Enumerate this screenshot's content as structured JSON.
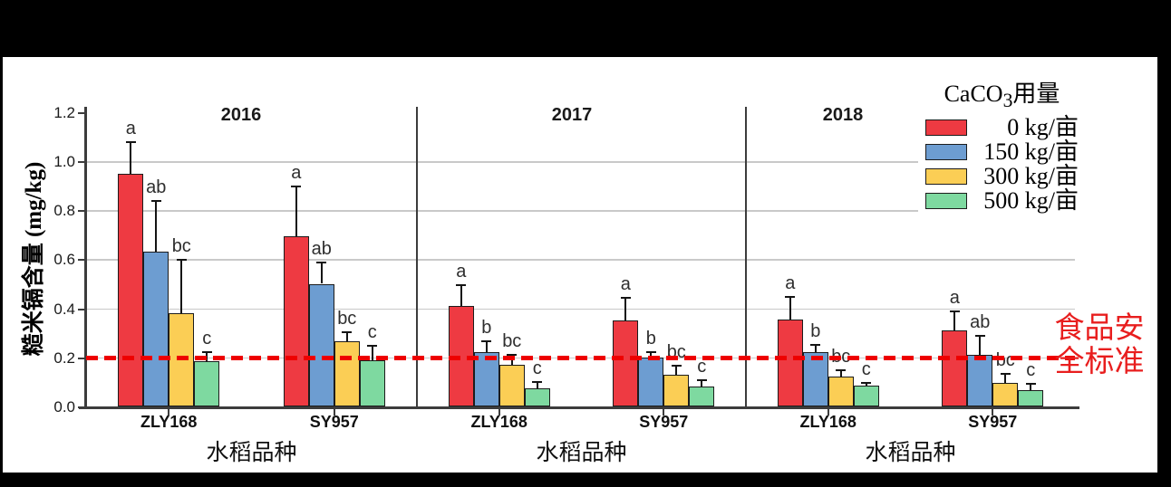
{
  "figure": {
    "y_axis_title": "糙米镉含量 (mg/kg)",
    "x_axis_title": "水稻品种",
    "y_ticks": [
      "0.0",
      "0.2",
      "0.4",
      "0.6",
      "0.8",
      "1.0",
      "1.2"
    ],
    "legend": {
      "title_prefix": "CaCO",
      "title_sub": "3",
      "title_suffix": "用量"
    },
    "reference_line": {
      "label_line1": "食品安",
      "label_line2": "全标准",
      "text_color": "#e81e1e",
      "line_color": "#ee0000"
    },
    "colors": {
      "gridline": "#c9c9c9",
      "axis": "#3c3c3c"
    }
  },
  "chart_data": {
    "type": "bar",
    "title": "",
    "ylabel": "糙米镉含量 (mg/kg)",
    "xlabel": "水稻品种",
    "ylim": [
      0,
      1.2
    ],
    "ytick_step": 0.2,
    "grid": "horizontal",
    "legend_position": "top-right-inside",
    "legend_title": "CaCO3用量",
    "reference_line": {
      "value": 0.2,
      "label": "食品安全标准"
    },
    "series": [
      {
        "name": "0 kg/亩",
        "color": "#ee3a42"
      },
      {
        "name": "150 kg/亩",
        "color": "#6d9dd1"
      },
      {
        "name": "300 kg/亩",
        "color": "#fbce55"
      },
      {
        "name": "500 kg/亩",
        "color": "#7ed9a0"
      }
    ],
    "panels": [
      {
        "year": "2016",
        "groups": [
          {
            "variety": "ZLY168",
            "bars": [
              {
                "treatment": "0 kg/亩",
                "value": 0.95,
                "error_top": 1.08,
                "letter": "a"
              },
              {
                "treatment": "150 kg/亩",
                "value": 0.63,
                "error_top": 0.84,
                "letter": "ab"
              },
              {
                "treatment": "300 kg/亩",
                "value": 0.38,
                "error_top": 0.6,
                "letter": "bc"
              },
              {
                "treatment": "500 kg/亩",
                "value": 0.185,
                "error_top": 0.225,
                "letter": "c"
              }
            ]
          },
          {
            "variety": "SY957",
            "bars": [
              {
                "treatment": "0 kg/亩",
                "value": 0.695,
                "error_top": 0.9,
                "letter": "a"
              },
              {
                "treatment": "150 kg/亩",
                "value": 0.5,
                "error_top": 0.59,
                "letter": "ab"
              },
              {
                "treatment": "300 kg/亩",
                "value": 0.265,
                "error_top": 0.305,
                "letter": "bc"
              },
              {
                "treatment": "500 kg/亩",
                "value": 0.19,
                "error_top": 0.25,
                "letter": "c"
              }
            ]
          }
        ]
      },
      {
        "year": "2017",
        "groups": [
          {
            "variety": "ZLY168",
            "bars": [
              {
                "treatment": "0 kg/亩",
                "value": 0.41,
                "error_top": 0.5,
                "letter": "a"
              },
              {
                "treatment": "150 kg/亩",
                "value": 0.22,
                "error_top": 0.27,
                "letter": "b"
              },
              {
                "treatment": "300 kg/亩",
                "value": 0.17,
                "error_top": 0.215,
                "letter": "bc"
              },
              {
                "treatment": "500 kg/亩",
                "value": 0.075,
                "error_top": 0.105,
                "letter": "c"
              }
            ]
          },
          {
            "variety": "SY957",
            "bars": [
              {
                "treatment": "0 kg/亩",
                "value": 0.35,
                "error_top": 0.445,
                "letter": "a"
              },
              {
                "treatment": "150 kg/亩",
                "value": 0.2,
                "error_top": 0.225,
                "letter": "b"
              },
              {
                "treatment": "300 kg/亩",
                "value": 0.13,
                "error_top": 0.17,
                "letter": "bc"
              },
              {
                "treatment": "500 kg/亩",
                "value": 0.08,
                "error_top": 0.11,
                "letter": "c"
              }
            ]
          }
        ]
      },
      {
        "year": "2018",
        "groups": [
          {
            "variety": "ZLY168",
            "bars": [
              {
                "treatment": "0 kg/亩",
                "value": 0.355,
                "error_top": 0.45,
                "letter": "a"
              },
              {
                "treatment": "150 kg/亩",
                "value": 0.22,
                "error_top": 0.255,
                "letter": "b"
              },
              {
                "treatment": "300 kg/亩",
                "value": 0.12,
                "error_top": 0.15,
                "letter": "bc"
              },
              {
                "treatment": "500 kg/亩",
                "value": 0.085,
                "error_top": 0.1,
                "letter": "c"
              }
            ]
          },
          {
            "variety": "SY957",
            "bars": [
              {
                "treatment": "0 kg/亩",
                "value": 0.31,
                "error_top": 0.39,
                "letter": "a"
              },
              {
                "treatment": "150 kg/亩",
                "value": 0.21,
                "error_top": 0.29,
                "letter": "ab"
              },
              {
                "treatment": "300 kg/亩",
                "value": 0.095,
                "error_top": 0.135,
                "letter": "bc"
              },
              {
                "treatment": "500 kg/亩",
                "value": 0.065,
                "error_top": 0.095,
                "letter": "c"
              }
            ]
          }
        ]
      }
    ]
  }
}
